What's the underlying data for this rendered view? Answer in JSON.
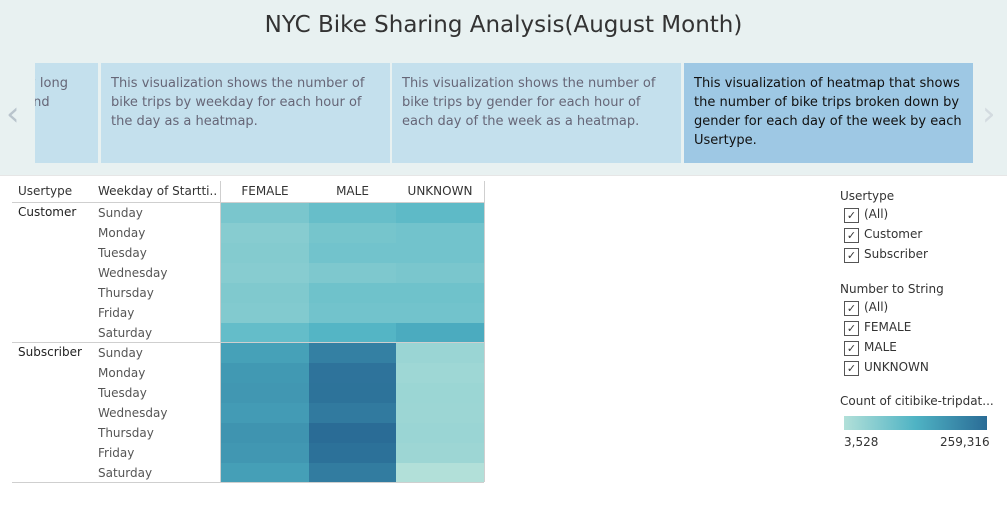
{
  "title": "NYC Bike Sharing Analysis(August Month)",
  "story": {
    "prev_icon": "chevron-left-icon",
    "next_icon": "chevron-right-icon",
    "prev_glyph": "‹",
    "next_glyph": "›",
    "points": [
      {
        "line1": "w long",
        "line2": "and"
      },
      {
        "text": "This visualization shows the number of bike trips by weekday for each hour of the day as a heatmap."
      },
      {
        "text": "This visualization shows the number of bike trips by gender for each hour of each day of the week as a heatmap."
      },
      {
        "text": "This visualization of heatmap that shows the number of bike trips broken down by gender for each day of the week by each Usertype."
      }
    ]
  },
  "table": {
    "header_usertype": "Usertype",
    "header_weekday": "Weekday of Startti..",
    "columns": [
      "FEMALE",
      "MALE",
      "UNKNOWN"
    ],
    "groups": [
      {
        "usertype": "Customer",
        "days": [
          "Sunday",
          "Monday",
          "Tuesday",
          "Wednesday",
          "Thursday",
          "Friday",
          "Saturday"
        ]
      },
      {
        "usertype": "Subscriber",
        "days": [
          "Sunday",
          "Monday",
          "Tuesday",
          "Wednesday",
          "Thursday",
          "Friday",
          "Saturday"
        ]
      }
    ]
  },
  "chart_data": {
    "type": "heatmap",
    "title": "",
    "x_categories": [
      "FEMALE",
      "MALE",
      "UNKNOWN"
    ],
    "y_groups": [
      "Customer",
      "Subscriber"
    ],
    "y_categories": [
      "Sunday",
      "Monday",
      "Tuesday",
      "Wednesday",
      "Thursday",
      "Friday",
      "Saturday"
    ],
    "color_measure": "Count of citibike-tripdat...",
    "color_range": [
      3528,
      259316
    ],
    "values": {
      "Customer": [
        [
          12000,
          18000,
          22000
        ],
        [
          9000,
          13000,
          14000
        ],
        [
          9500,
          14000,
          14000
        ],
        [
          9000,
          11000,
          12000
        ],
        [
          10500,
          15000,
          15000
        ],
        [
          10000,
          14000,
          14000
        ],
        [
          19000,
          27000,
          38000
        ]
      ],
      "Subscriber": [
        [
          52000,
          143000,
          6000
        ],
        [
          67000,
          208000,
          5500
        ],
        [
          70000,
          213000,
          5800
        ],
        [
          62000,
          172000,
          5700
        ],
        [
          78000,
          259316,
          5900
        ],
        [
          70000,
          225000,
          5600
        ],
        [
          55000,
          160000,
          3528
        ]
      ]
    }
  },
  "filters": {
    "usertype": {
      "title": "Usertype",
      "options": [
        {
          "label": "(All)",
          "checked": true
        },
        {
          "label": "Customer",
          "checked": true
        },
        {
          "label": "Subscriber",
          "checked": true
        }
      ]
    },
    "number_to_string": {
      "title": "Number to String",
      "options": [
        {
          "label": "(All)",
          "checked": true
        },
        {
          "label": "FEMALE",
          "checked": true
        },
        {
          "label": "MALE",
          "checked": true
        },
        {
          "label": "UNKNOWN",
          "checked": true
        }
      ]
    },
    "checkmark": "✓"
  },
  "color_legend": {
    "title": "Count of citibike-tripdat...",
    "min_label": "3,528",
    "max_label": "259,316",
    "colors": [
      "#b2e0d9",
      "#4fb3c4",
      "#2a6c96"
    ]
  }
}
